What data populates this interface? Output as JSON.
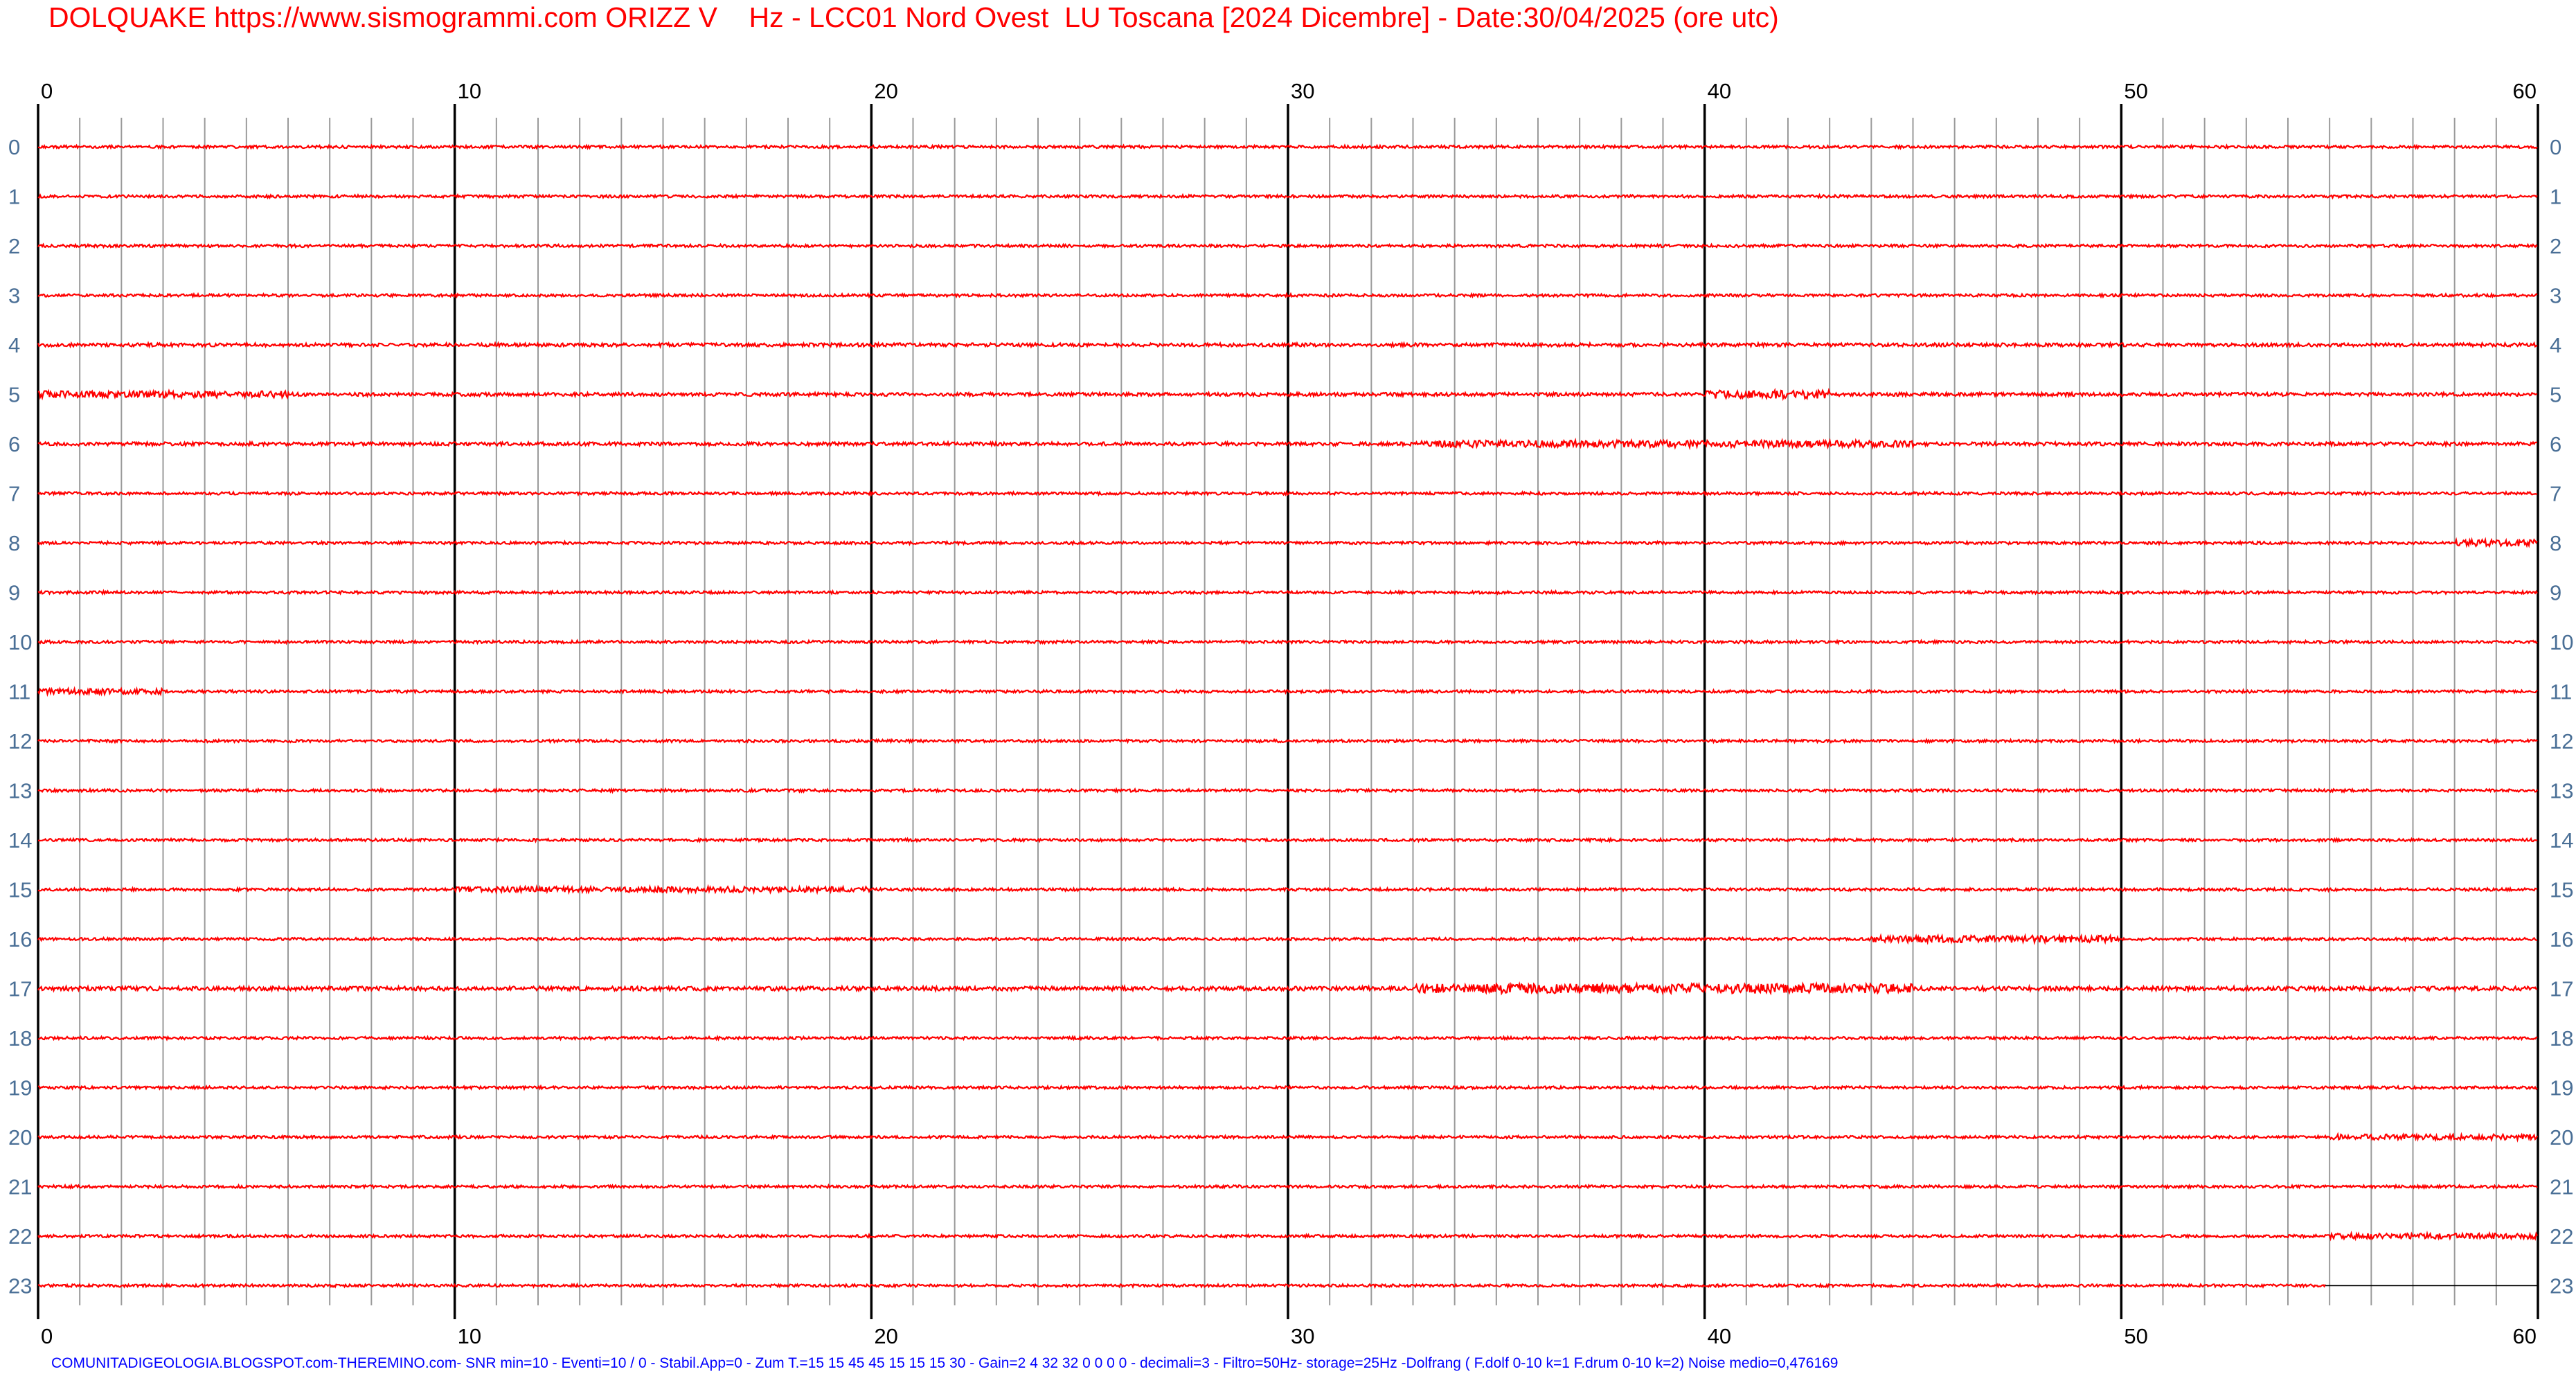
{
  "header": {
    "title": "DOLQUAKE https://www.sismogrammi.com ORIZZ V    Hz - LCC01 Nord Ovest  LU Toscana [2024 Dicembre] - Date:30/04/2025 (ore utc)"
  },
  "footer": {
    "info": "COMUNITADIGEOLOGIA.BLOGSPOT.com-THEREMINO.com- SNR min=10 - Eventi=10 / 0 - Stabil.App=0 - Zum T.=15 15 45 45 15 15 15 30 - Gain=2 4 32 32 0 0 0 0 - decimali=3 - Filtro=50Hz- storage=25Hz -Dolfrang ( F.dolf 0-10 k=1 F.drum 0-10 k=2) Noise medio=0,476169"
  },
  "chart_data": {
    "type": "line",
    "title": "DOLQUAKE https://www.sismogrammi.com ORIZZ V    Hz - LCC01 Nord Ovest  LU Toscana [2024 Dicembre] - Date:30/04/2025 (ore utc)",
    "xlabel": "",
    "ylabel": "",
    "x_ticks": [
      0,
      10,
      20,
      30,
      40,
      50,
      60
    ],
    "xlim": [
      0,
      60
    ],
    "minor_grid_step": 1,
    "grid": true,
    "rows": [
      "0",
      "1",
      "2",
      "3",
      "4",
      "5",
      "6",
      "7",
      "8",
      "9",
      "10",
      "11",
      "12",
      "13",
      "14",
      "15",
      "16",
      "17",
      "18",
      "19",
      "20",
      "21",
      "22",
      "23"
    ],
    "trace_color": "#ff0000",
    "label_color": "#4a6f96",
    "record_end_minute": 54.9,
    "row_noise_level": [
      2,
      2,
      2,
      2,
      2.5,
      2.5,
      2.5,
      2,
      2,
      2,
      2,
      2,
      2,
      2,
      2,
      2,
      2,
      3,
      2,
      2,
      2,
      2,
      2,
      2
    ],
    "bursts": [
      {
        "hour": 5,
        "from": 0,
        "to": 6,
        "amp": 5
      },
      {
        "hour": 5,
        "from": 40,
        "to": 43,
        "amp": 6
      },
      {
        "hour": 6,
        "from": 33,
        "to": 45,
        "amp": 5
      },
      {
        "hour": 17,
        "from": 33,
        "to": 45,
        "amp": 7
      },
      {
        "hour": 16,
        "from": 44,
        "to": 50,
        "amp": 5
      },
      {
        "hour": 15,
        "from": 10,
        "to": 20,
        "amp": 4
      },
      {
        "hour": 11,
        "from": 0,
        "to": 3,
        "amp": 4
      },
      {
        "hour": 8,
        "from": 58,
        "to": 60,
        "amp": 5
      },
      {
        "hour": 22,
        "from": 55,
        "to": 60,
        "amp": 4
      },
      {
        "hour": 20,
        "from": 55,
        "to": 60,
        "amp": 4
      }
    ]
  }
}
